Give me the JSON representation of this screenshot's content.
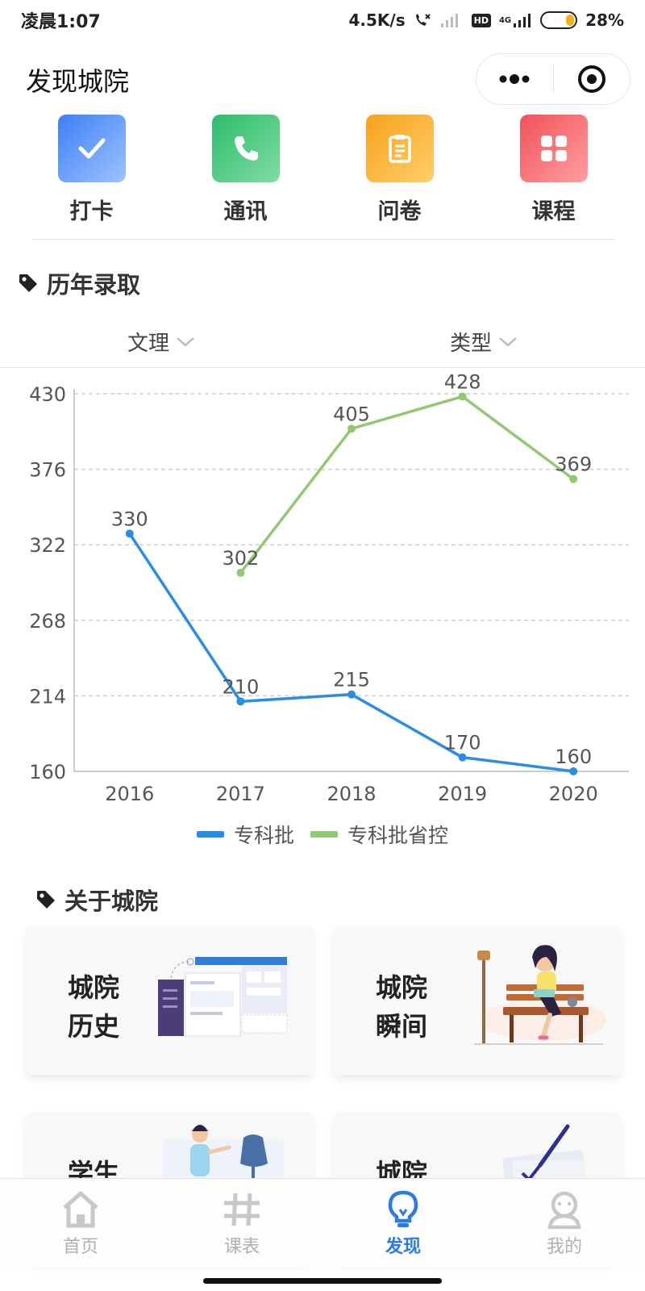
{
  "status_bar": {
    "time": "凌晨1:07",
    "network_speed": "4.5K/s",
    "hd": "HD",
    "net_type": "4G",
    "battery_text": "28%",
    "battery_level": 0.28
  },
  "header": {
    "title": "发现城院"
  },
  "quick_actions": [
    {
      "label": "打卡",
      "icon": "check-icon",
      "color_from": "#3e7ff5",
      "color_to": "#9dc3ff"
    },
    {
      "label": "通讯",
      "icon": "phone-icon",
      "color_from": "#2dbb6c",
      "color_to": "#7fdca2"
    },
    {
      "label": "问卷",
      "icon": "clipboard-icon",
      "color_from": "#f7a11b",
      "color_to": "#ffcf6b"
    },
    {
      "label": "课程",
      "icon": "grid-icon",
      "color_from": "#f0525a",
      "color_to": "#ff9ea2"
    }
  ],
  "admission_section": {
    "title": "历年录取",
    "filters": [
      {
        "label": "文理"
      },
      {
        "label": "类型"
      }
    ]
  },
  "chart_data": {
    "type": "line",
    "x": [
      "2016",
      "2017",
      "2018",
      "2019",
      "2020"
    ],
    "yticks": [
      "430",
      "376",
      "322",
      "268",
      "214",
      "160"
    ],
    "ylim": [
      160,
      430
    ],
    "grid": true,
    "legend_position": "bottom",
    "series": [
      {
        "name": "专科批",
        "color": "#2a8de0",
        "values": [
          330,
          210,
          215,
          170,
          160
        ]
      },
      {
        "name": "专科批省控",
        "color": "#92c872",
        "values": [
          null,
          302,
          405,
          428,
          369
        ]
      }
    ]
  },
  "about_section": {
    "title": "关于城院",
    "cards": [
      {
        "title": "城院历史"
      },
      {
        "title": "城院瞬间"
      },
      {
        "title": "学生"
      },
      {
        "title": "城院"
      }
    ]
  },
  "tab_bar": {
    "tabs": [
      {
        "label": "首页",
        "icon": "home-icon",
        "active": false
      },
      {
        "label": "课表",
        "icon": "hash-icon",
        "active": false
      },
      {
        "label": "发现",
        "icon": "lightbulb-icon",
        "active": true
      },
      {
        "label": "我的",
        "icon": "user-icon",
        "active": false
      }
    ]
  }
}
